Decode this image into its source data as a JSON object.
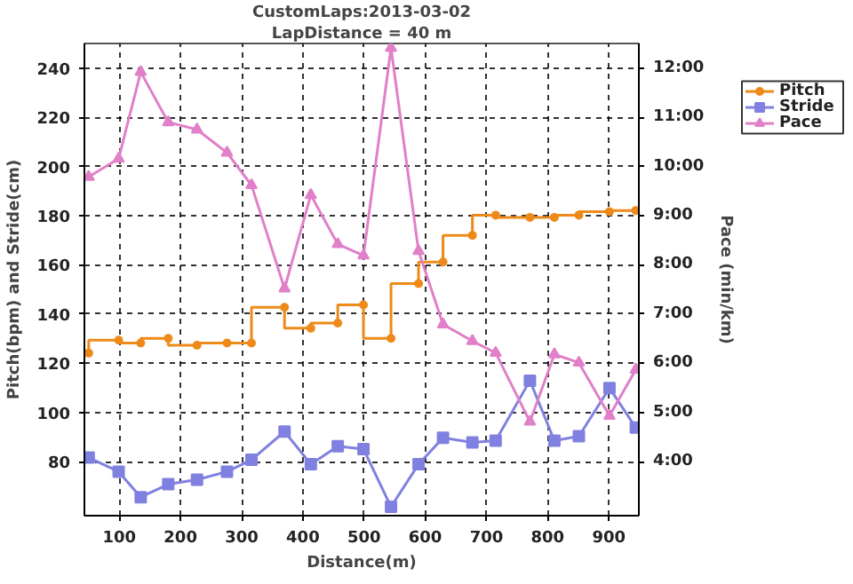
{
  "chart_data": {
    "type": "line",
    "title": "CustomLaps:2013-03-02",
    "subtitle": "LapDistance = 40 m",
    "xlabel": "Distance(m)",
    "ylabel": "Pitch(bpm) and Stride(cm)",
    "y2label": "Pace (min/km)",
    "x": [
      50,
      99,
      135,
      180,
      227,
      276,
      316,
      370,
      413,
      457,
      499,
      544,
      589,
      629,
      677,
      715,
      771,
      811,
      851,
      901,
      944
    ],
    "series": [
      {
        "name": "Pitch",
        "type": "step",
        "color": "#ee8a1a",
        "marker": "circle",
        "values": [
          124.1,
          129.4,
          128.2,
          130.1,
          127.3,
          128.2,
          128.2,
          142.7,
          134.2,
          136.3,
          143.7,
          130.1,
          152.4,
          161.1,
          172.0,
          180.2,
          179.3,
          179.3,
          180.2,
          181.6,
          182.1
        ]
      },
      {
        "name": "Stride",
        "color": "#8080e0",
        "marker": "square",
        "values": [
          81.6,
          75.9,
          65.5,
          70.8,
          72.6,
          75.9,
          80.7,
          92.2,
          78.9,
          86.2,
          85.1,
          61.6,
          78.9,
          89.7,
          87.8,
          88.5,
          112.9,
          88.5,
          90.3,
          109.9,
          93.8
        ]
      },
      {
        "name": "Pace",
        "axis": "y2",
        "color": "#e080c8",
        "marker": "triangle",
        "values": [
          9.79,
          10.16,
          11.92,
          10.9,
          10.75,
          10.28,
          9.62,
          7.52,
          9.42,
          8.42,
          8.19,
          12.41,
          8.28,
          6.79,
          6.45,
          6.21,
          4.81,
          6.18,
          6.01,
          4.93,
          5.87
        ]
      }
    ],
    "xlim": [
      43,
      949
    ],
    "xticks": [
      100,
      200,
      300,
      400,
      500,
      600,
      700,
      800,
      900
    ],
    "ylim": [
      58,
      250
    ],
    "yticks": [
      80,
      100,
      120,
      140,
      160,
      180,
      200,
      220,
      240
    ],
    "y2lim": [
      2.9,
      12.5
    ],
    "y2ticks": [
      {
        "value": 4,
        "label": "4:00"
      },
      {
        "value": 5,
        "label": "5:00"
      },
      {
        "value": 6,
        "label": "6:00"
      },
      {
        "value": 7,
        "label": "7:00"
      },
      {
        "value": 8,
        "label": "8:00"
      },
      {
        "value": 9,
        "label": "9:00"
      },
      {
        "value": 10,
        "label": "10:00"
      },
      {
        "value": 11,
        "label": "11:00"
      },
      {
        "value": 12,
        "label": "12:00"
      }
    ],
    "grid": true,
    "legend": "top right",
    "line_style": "solid"
  }
}
